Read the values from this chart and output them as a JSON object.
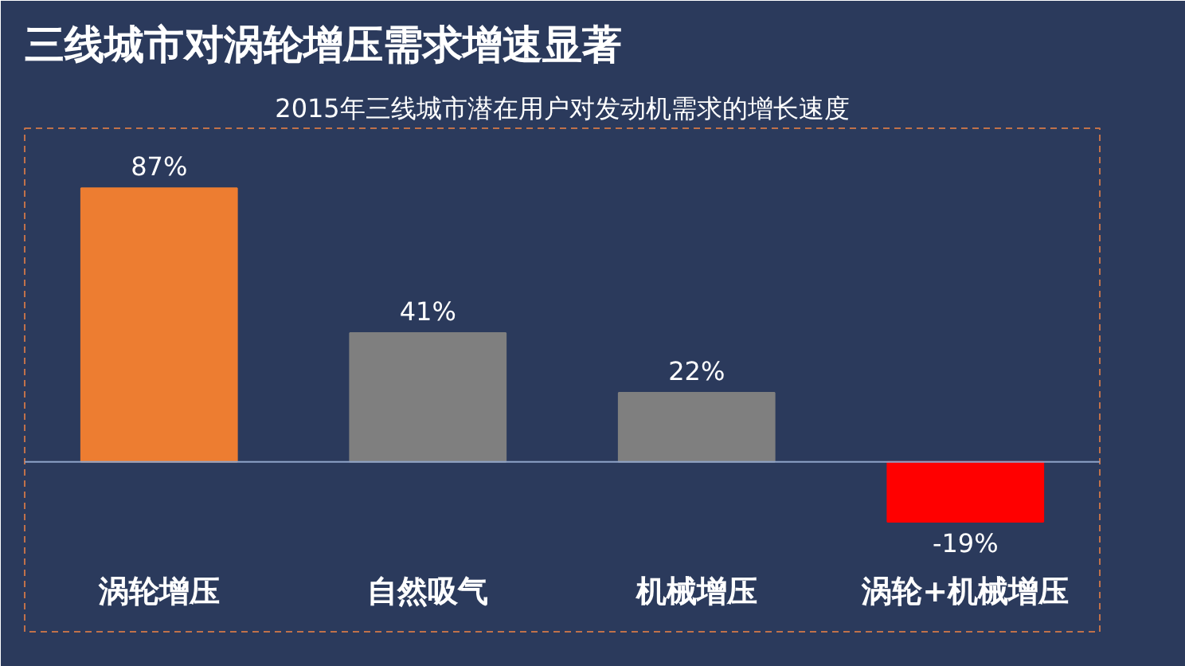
{
  "chart_data": {
    "type": "bar",
    "title": "三线城市对涡轮增压需求增速显著",
    "subtitle": "2015年三线城市潜在用户对发动机需求的增长速度",
    "categories": [
      "涡轮增压",
      "自然吸气",
      "机械增压",
      "涡轮+机械增压"
    ],
    "values": [
      87,
      41,
      22,
      -19
    ],
    "colors": [
      "#ed7d31",
      "#7f7f7f",
      "#7f7f7f",
      "#ff0000"
    ],
    "value_labels": [
      "87%",
      "41%",
      "22%",
      "-19%"
    ],
    "ref_lines": [
      {
        "axis": "y",
        "value": 0,
        "color": "#8fa3c8"
      }
    ],
    "grid": false
  }
}
